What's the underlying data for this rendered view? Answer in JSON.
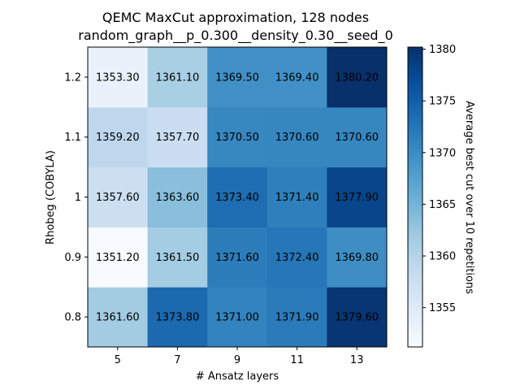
{
  "chart_data": {
    "type": "heatmap",
    "title": "QEMC MaxCut approximation, 128 nodes",
    "subtitle": "random_graph__p_0.300__density_0.30__seed_0",
    "xlabel": "# Ansatz layers",
    "ylabel": "Rhobeg (COBYLA)",
    "x_categories": [
      "5",
      "7",
      "9",
      "11",
      "13"
    ],
    "y_categories": [
      "0.8",
      "0.9",
      "1",
      "1.1",
      "1.2"
    ],
    "values": [
      [
        1361.6,
        1373.8,
        1371.0,
        1371.9,
        1379.6
      ],
      [
        1351.2,
        1361.5,
        1371.6,
        1372.4,
        1369.8
      ],
      [
        1357.6,
        1363.6,
        1373.4,
        1371.4,
        1377.9
      ],
      [
        1359.2,
        1357.7,
        1370.5,
        1370.6,
        1370.6
      ],
      [
        1353.3,
        1361.1,
        1369.5,
        1369.4,
        1380.2
      ]
    ],
    "value_labels": [
      [
        "1361.60",
        "1373.80",
        "1371.00",
        "1371.90",
        "1379.60"
      ],
      [
        "1351.20",
        "1361.50",
        "1371.60",
        "1372.40",
        "1369.80"
      ],
      [
        "1357.60",
        "1363.60",
        "1373.40",
        "1371.40",
        "1377.90"
      ],
      [
        "1359.20",
        "1357.70",
        "1370.50",
        "1370.60",
        "1370.60"
      ],
      [
        "1353.30",
        "1361.10",
        "1369.50",
        "1369.40",
        "1380.20"
      ]
    ],
    "colorbar": {
      "label": "Average best cut over 10 repetitions",
      "colormap": "Blues",
      "range": [
        1351.2,
        1380.2
      ],
      "ticks": [
        1355,
        1360,
        1365,
        1370,
        1375,
        1380
      ],
      "tick_labels": [
        "1355",
        "1360",
        "1365",
        "1370",
        "1375",
        "1380"
      ]
    },
    "grid": false,
    "colors": {
      "low": "#f7fbff",
      "high": "#08306b"
    }
  }
}
